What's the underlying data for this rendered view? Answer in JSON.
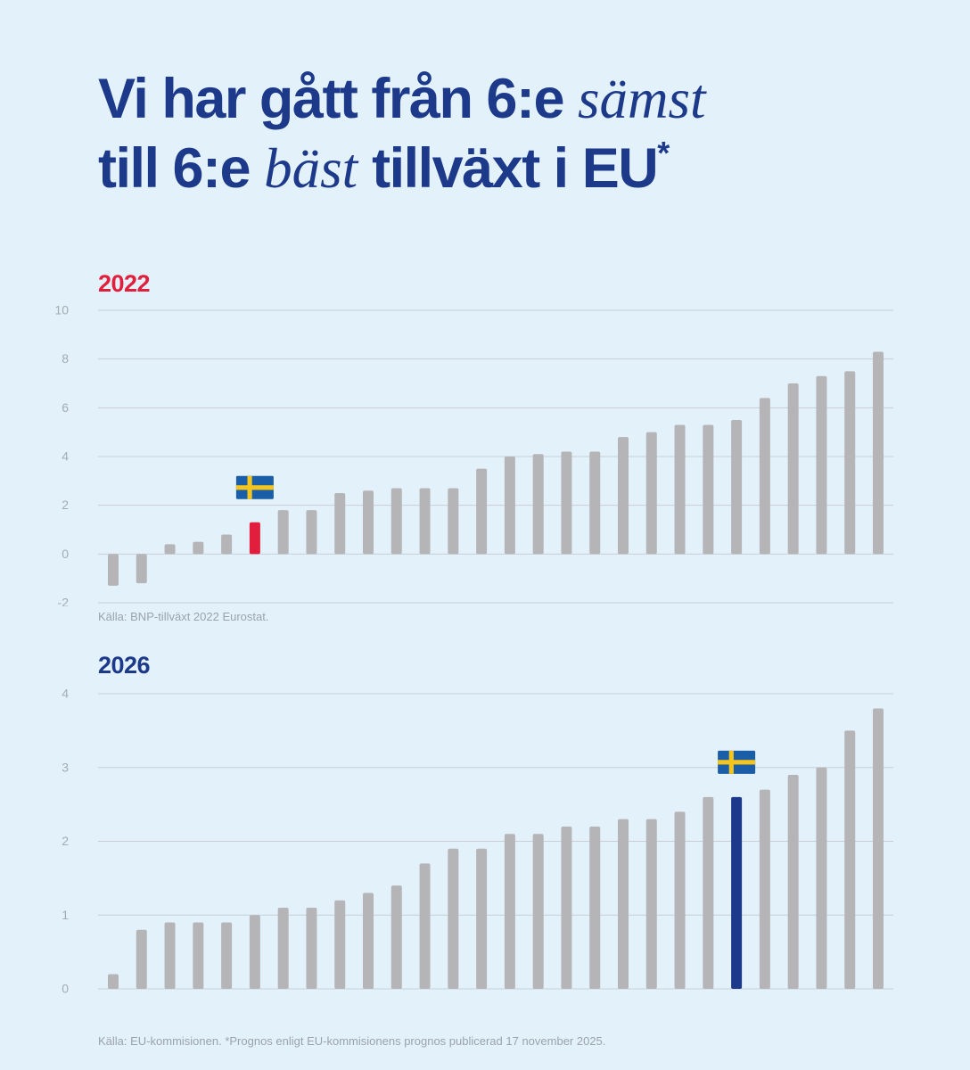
{
  "title": {
    "line1_start": "Vi har gått från 6:e ",
    "line1_italic": "sämst",
    "line2_start": "till 6:e ",
    "line2_italic": "bäst",
    "line2_end": " tillväxt i EU",
    "asterisk": "*"
  },
  "colors": {
    "background": "#e3f1fb",
    "title": "#1d3a8a",
    "bar": "#b5b5b8",
    "highlight_2022": "#e11f3c",
    "highlight_2026": "#1d3a8a",
    "grid": "#c8ced4",
    "tick": "#a3abb3",
    "flag_blue": "#1a5ea8",
    "flag_yellow": "#f4c51c"
  },
  "chart_data": [
    {
      "type": "bar",
      "title": "2022",
      "title_color": "#e11f3c",
      "ylim": [
        -2,
        10
      ],
      "yticks": [
        10,
        8,
        6,
        4,
        2,
        0,
        -2
      ],
      "grid": true,
      "values": [
        -1.3,
        -1.2,
        0.4,
        0.5,
        0.8,
        1.3,
        1.8,
        1.8,
        2.5,
        2.6,
        2.7,
        2.7,
        2.7,
        3.5,
        4.0,
        4.1,
        4.2,
        4.2,
        4.8,
        5.0,
        5.3,
        5.3,
        5.5,
        6.4,
        7.0,
        7.3,
        7.5,
        8.3
      ],
      "highlight_index": 5,
      "highlight_icon": "sweden-flag-icon",
      "source": "Källa: BNP-tillväxt 2022 Eurostat."
    },
    {
      "type": "bar",
      "title": "2026",
      "title_color": "#1d3a8a",
      "ylim": [
        0,
        4
      ],
      "yticks": [
        4,
        3,
        2,
        1,
        0
      ],
      "grid": true,
      "values": [
        0.2,
        0.8,
        0.9,
        0.9,
        0.9,
        1.0,
        1.1,
        1.1,
        1.2,
        1.3,
        1.4,
        1.7,
        1.9,
        1.9,
        2.1,
        2.1,
        2.2,
        2.2,
        2.3,
        2.3,
        2.4,
        2.6,
        2.6,
        2.7,
        2.9,
        3.0,
        3.5,
        3.8
      ],
      "highlight_index": 22,
      "highlight_icon": "sweden-flag-icon",
      "source": "Källa: EU-kommisionen. *Prognos enligt EU-kommisionens prognos publicerad 17 november 2025."
    }
  ]
}
